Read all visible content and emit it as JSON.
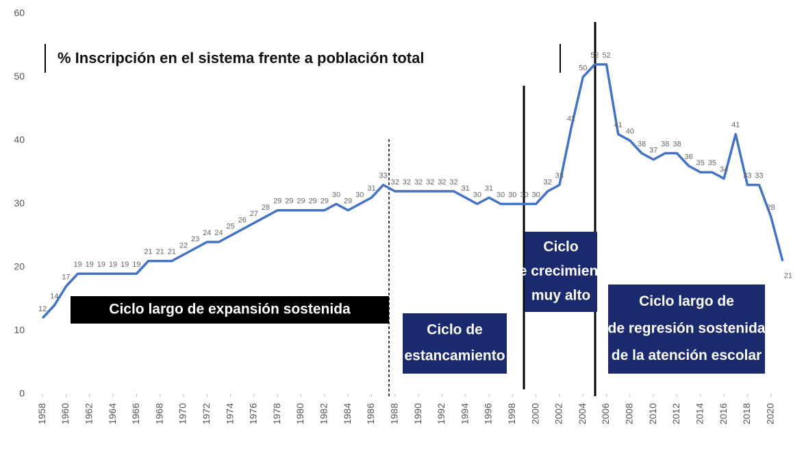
{
  "chart_data": {
    "type": "line",
    "title": "% Inscripción en el sistema frente a población total",
    "x": [
      1958,
      1959,
      1960,
      1961,
      1962,
      1963,
      1964,
      1965,
      1966,
      1967,
      1968,
      1969,
      1970,
      1971,
      1972,
      1973,
      1974,
      1975,
      1976,
      1977,
      1978,
      1979,
      1980,
      1981,
      1982,
      1983,
      1984,
      1985,
      1986,
      1987,
      1988,
      1989,
      1990,
      1991,
      1992,
      1993,
      1994,
      1995,
      1996,
      1997,
      1998,
      1999,
      2000,
      2001,
      2002,
      2003,
      2004,
      2005,
      2006,
      2007,
      2008,
      2009,
      2010,
      2011,
      2012,
      2013,
      2014,
      2015,
      2016,
      2017,
      2018,
      2019,
      2020,
      2021
    ],
    "values": [
      12,
      14,
      17,
      19,
      19,
      19,
      19,
      19,
      19,
      21,
      21,
      21,
      22,
      23,
      24,
      24,
      25,
      26,
      27,
      28,
      29,
      29,
      29,
      29,
      29,
      30,
      29,
      30,
      31,
      33,
      32,
      32,
      32,
      32,
      32,
      32,
      31,
      30,
      31,
      30,
      30,
      30,
      30,
      32,
      33,
      42,
      50,
      52,
      52,
      41,
      40,
      38,
      37,
      38,
      38,
      36,
      35,
      35,
      34,
      41,
      33,
      33,
      28,
      21
    ],
    "color": "#4472c4",
    "xlim": [
      1957,
      2022
    ],
    "xticks": [
      1958,
      1960,
      1962,
      1964,
      1966,
      1968,
      1970,
      1972,
      1974,
      1976,
      1978,
      1980,
      1982,
      1984,
      1986,
      1988,
      1990,
      1992,
      1994,
      1996,
      1998,
      2000,
      2002,
      2004,
      2006,
      2008,
      2010,
      2012,
      2014,
      2016,
      2018,
      2020
    ],
    "ylim": [
      0,
      60
    ],
    "yticks": [
      0,
      10,
      20,
      30,
      40,
      50,
      60
    ],
    "grid": false,
    "annotations": [
      {
        "lines": [
          "Ciclo largo de expansión sostenida"
        ]
      },
      {
        "lines": [
          "Ciclo de",
          "estancamiento"
        ]
      },
      {
        "lines": [
          "Ciclo",
          "de crecimiento",
          "muy alto"
        ]
      },
      {
        "lines": [
          "Ciclo largo  de",
          "de regresión sostenida",
          "de la atención escolar"
        ]
      }
    ]
  }
}
